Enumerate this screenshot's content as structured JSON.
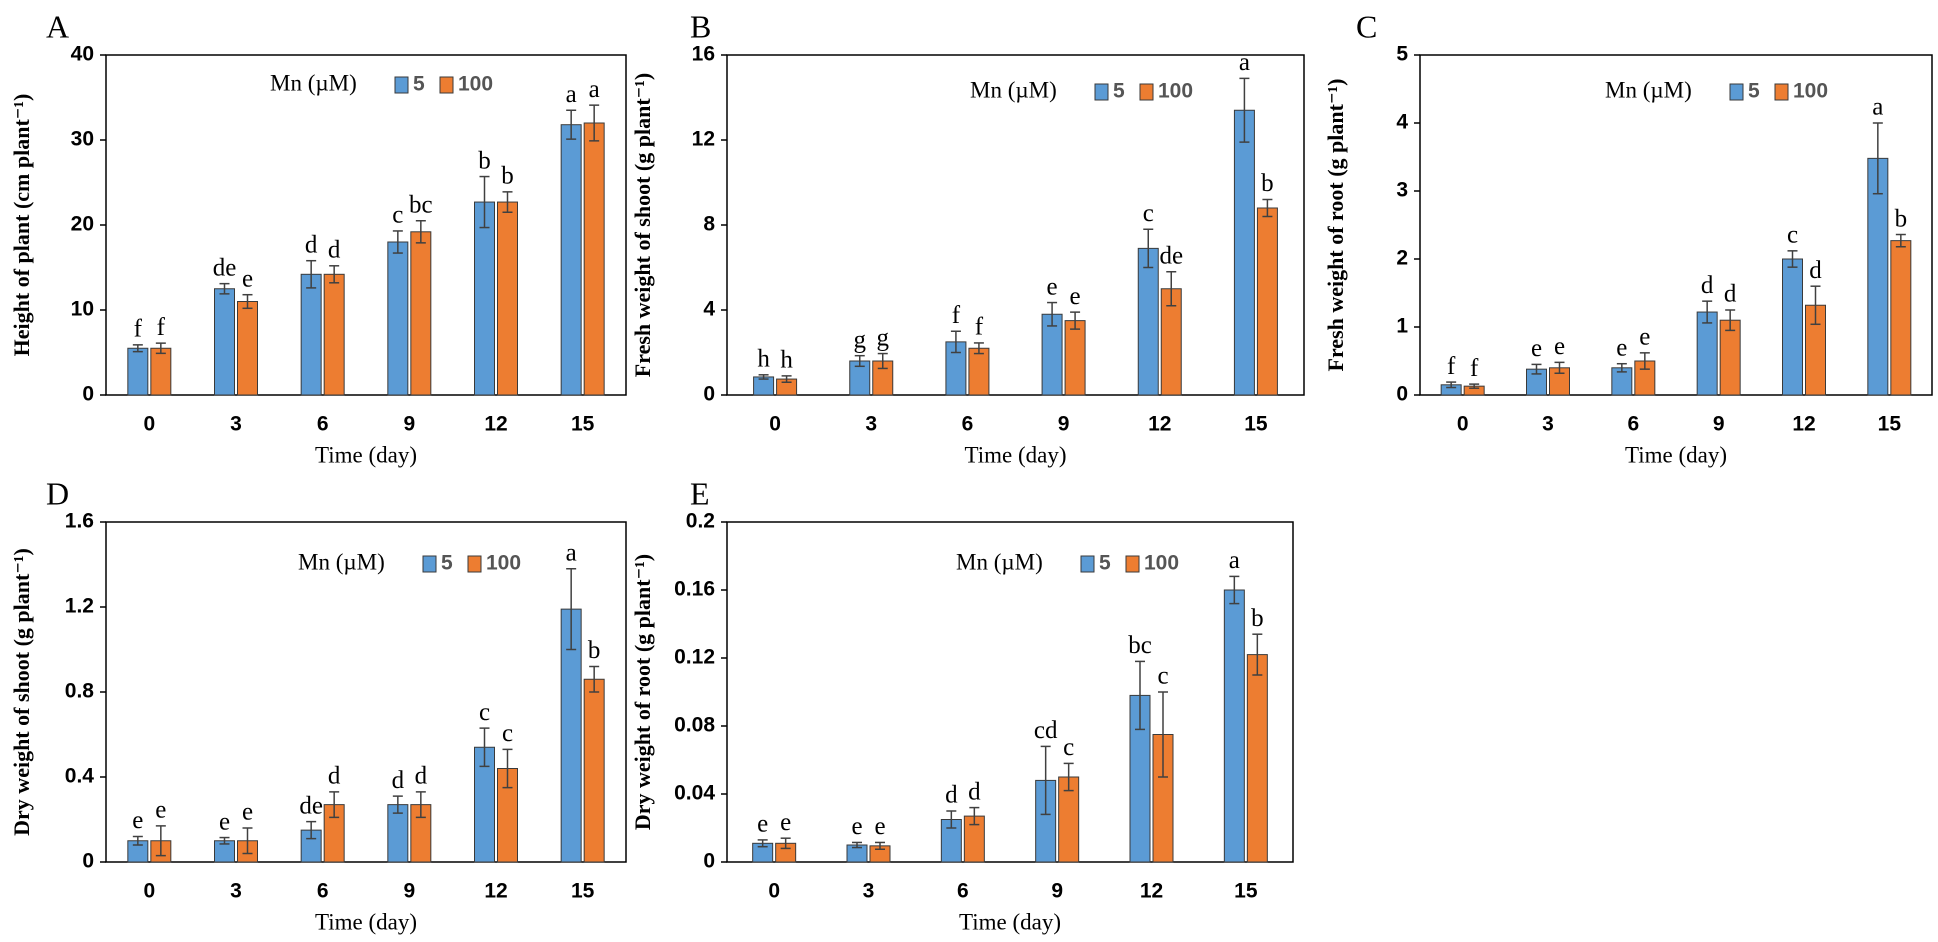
{
  "colors": {
    "series_5": "#5b9bd5",
    "series_100": "#ed7d31",
    "bar_edge": "#3a3a3a",
    "error_bar": "#404040"
  },
  "chart_data": [
    {
      "panel": "A",
      "type": "bar",
      "categories": [
        "0",
        "3",
        "6",
        "9",
        "12",
        "15"
      ],
      "xlabel": "Time (day)",
      "ylabel": "Height of plant (cm plant⁻¹)",
      "ylim": [
        0,
        40
      ],
      "yticks": [
        "0",
        "10",
        "20",
        "30",
        "40"
      ],
      "legend": {
        "title": "Mn (µM)",
        "position": "top-center"
      },
      "series": [
        {
          "name": "5",
          "values": [
            5.5,
            12.5,
            14.2,
            18.0,
            22.7,
            31.8
          ],
          "errors": [
            0.4,
            0.6,
            1.6,
            1.3,
            3.0,
            1.7
          ],
          "labels": [
            "f",
            "de",
            "d",
            "c",
            "b",
            "a"
          ]
        },
        {
          "name": "100",
          "values": [
            5.5,
            11.0,
            14.2,
            19.2,
            22.7,
            32.0
          ],
          "errors": [
            0.6,
            0.8,
            1.0,
            1.3,
            1.2,
            2.1
          ],
          "labels": [
            "f",
            "e",
            "d",
            "bc",
            "b",
            "a"
          ]
        }
      ]
    },
    {
      "panel": "B",
      "type": "bar",
      "categories": [
        "0",
        "3",
        "6",
        "9",
        "12",
        "15"
      ],
      "xlabel": "Time (day)",
      "ylabel": "Fresh weight of shoot (g plant⁻¹)",
      "ylim": [
        0,
        16
      ],
      "yticks": [
        "0",
        "4",
        "8",
        "12",
        "16"
      ],
      "legend": {
        "title": "Mn (µM)",
        "position": "top-right"
      },
      "series": [
        {
          "name": "5",
          "values": [
            0.85,
            1.6,
            2.5,
            3.8,
            6.9,
            13.4
          ],
          "errors": [
            0.1,
            0.25,
            0.5,
            0.55,
            0.9,
            1.5
          ],
          "labels": [
            "h",
            "g",
            "f",
            "e",
            "c",
            "a"
          ]
        },
        {
          "name": "100",
          "values": [
            0.75,
            1.6,
            2.2,
            3.5,
            5.0,
            8.8
          ],
          "errors": [
            0.15,
            0.35,
            0.25,
            0.4,
            0.8,
            0.4
          ],
          "labels": [
            "h",
            "g",
            "f",
            "e",
            "de",
            "b"
          ]
        }
      ]
    },
    {
      "panel": "C",
      "type": "bar",
      "categories": [
        "0",
        "3",
        "6",
        "9",
        "12",
        "15"
      ],
      "xlabel": "Time (day)",
      "ylabel": "Fresh weight of root (g plant⁻¹)",
      "ylim": [
        0,
        5
      ],
      "yticks": [
        "0",
        "1",
        "2",
        "3",
        "4",
        "5"
      ],
      "legend": {
        "title": "Mn (µM)",
        "position": "top-right"
      },
      "series": [
        {
          "name": "5",
          "values": [
            0.15,
            0.38,
            0.4,
            1.22,
            2.0,
            3.48
          ],
          "errors": [
            0.04,
            0.07,
            0.06,
            0.16,
            0.12,
            0.52
          ],
          "labels": [
            "f",
            "e",
            "e",
            "d",
            "c",
            "a"
          ]
        },
        {
          "name": "100",
          "values": [
            0.13,
            0.4,
            0.5,
            1.1,
            1.32,
            2.27
          ],
          "errors": [
            0.03,
            0.08,
            0.12,
            0.15,
            0.28,
            0.09
          ],
          "labels": [
            "f",
            "e",
            "e",
            "d",
            "d",
            "b"
          ]
        }
      ]
    },
    {
      "panel": "D",
      "type": "bar",
      "categories": [
        "0",
        "3",
        "6",
        "9",
        "12",
        "15"
      ],
      "xlabel": "Time (day)",
      "ylabel": "Dry weight of shoot  (g plant⁻¹)",
      "ylim": [
        0,
        1.6
      ],
      "yticks": [
        "0",
        "0.4",
        "0.8",
        "1.2",
        "1.6"
      ],
      "legend": {
        "title": "Mn (µM)",
        "position": "top-center"
      },
      "series": [
        {
          "name": "5",
          "values": [
            0.1,
            0.1,
            0.15,
            0.27,
            0.54,
            1.19
          ],
          "errors": [
            0.02,
            0.015,
            0.04,
            0.04,
            0.09,
            0.19
          ],
          "labels": [
            "e",
            "e",
            "de",
            "d",
            "c",
            "a"
          ]
        },
        {
          "name": "100",
          "values": [
            0.1,
            0.1,
            0.27,
            0.27,
            0.44,
            0.86
          ],
          "errors": [
            0.07,
            0.06,
            0.06,
            0.06,
            0.09,
            0.06
          ],
          "labels": [
            "e",
            "e",
            "d",
            "d",
            "c",
            "b"
          ]
        }
      ]
    },
    {
      "panel": "E",
      "type": "bar",
      "categories": [
        "0",
        "3",
        "6",
        "9",
        "12",
        "15"
      ],
      "xlabel": "Time (day)",
      "ylabel": "Dry weight of root (g plant⁻¹)",
      "ylim": [
        0,
        0.2
      ],
      "yticks": [
        "0",
        "0.04",
        "0.08",
        "0.12",
        "0.16",
        "0.2"
      ],
      "legend": {
        "title": "Mn (µM)",
        "position": "top-right"
      },
      "series": [
        {
          "name": "5",
          "values": [
            0.011,
            0.01,
            0.025,
            0.048,
            0.098,
            0.16
          ],
          "errors": [
            0.002,
            0.0015,
            0.005,
            0.02,
            0.02,
            0.008
          ],
          "labels": [
            "e",
            "e",
            "d",
            "cd",
            "bc",
            "a"
          ]
        },
        {
          "name": "100",
          "values": [
            0.011,
            0.0095,
            0.027,
            0.05,
            0.075,
            0.122
          ],
          "errors": [
            0.003,
            0.002,
            0.005,
            0.008,
            0.025,
            0.012
          ],
          "labels": [
            "e",
            "e",
            "d",
            "c",
            "c",
            "b"
          ]
        }
      ]
    }
  ]
}
